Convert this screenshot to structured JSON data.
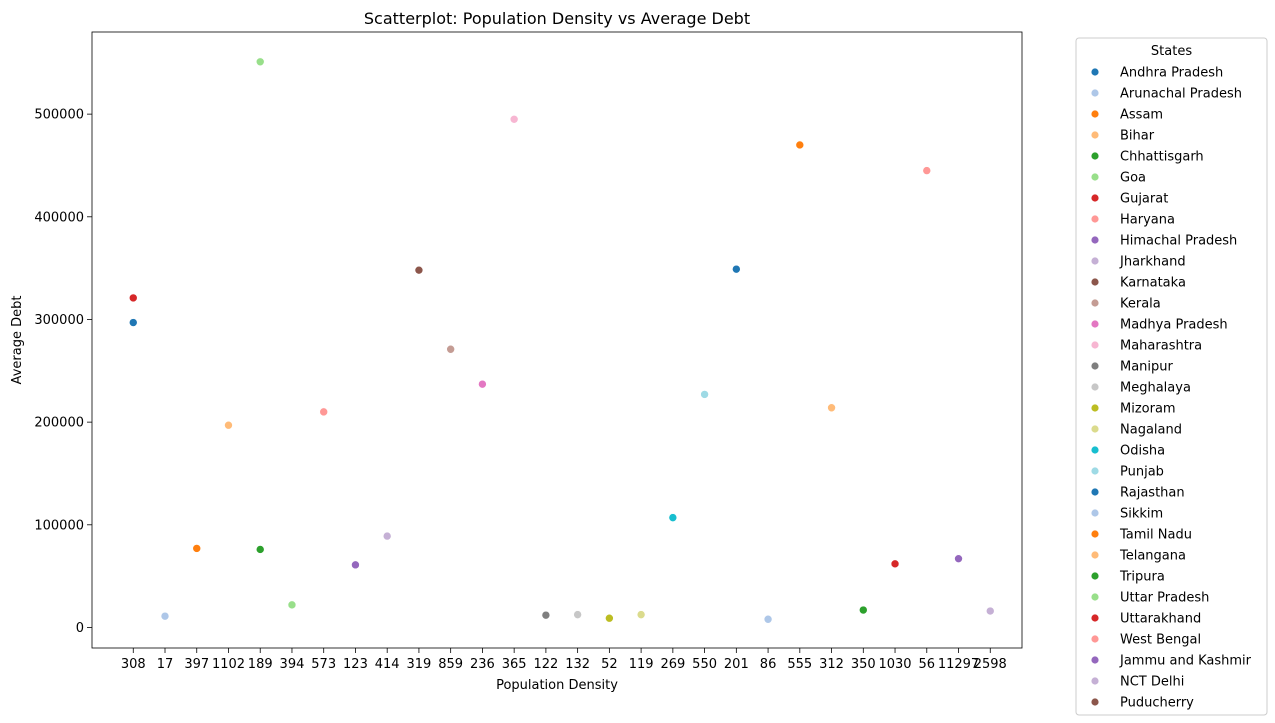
{
  "chart_data": {
    "type": "scatter",
    "title": "Scatterplot: Population Density vs Average Debt",
    "xlabel": "Population Density",
    "ylabel": "Average Debt",
    "x_scale": "categorical",
    "x_categories": [
      "308",
      "17",
      "397",
      "1102",
      "189",
      "394",
      "573",
      "123",
      "414",
      "319",
      "859",
      "236",
      "365",
      "122",
      "132",
      "52",
      "119",
      "269",
      "550",
      "201",
      "86",
      "555",
      "312",
      "350",
      "1030",
      "56",
      "11297",
      "2598"
    ],
    "ylim": [
      -20000,
      580000
    ],
    "yticks": [
      0,
      100000,
      200000,
      300000,
      400000,
      500000
    ],
    "ytick_labels": [
      "0",
      "100000",
      "200000",
      "300000",
      "400000",
      "500000"
    ],
    "grid": false,
    "legend": {
      "title": "States",
      "placement": "outside right"
    },
    "series": [
      {
        "name": "Andhra Pradesh",
        "color": "#1f77b4",
        "points": [
          {
            "x": "308",
            "y": 297000
          }
        ]
      },
      {
        "name": "Arunachal Pradesh",
        "color": "#aec7e8",
        "points": [
          {
            "x": "17",
            "y": 11000
          }
        ]
      },
      {
        "name": "Assam",
        "color": "#ff7f0e",
        "points": [
          {
            "x": "397",
            "y": 77000
          }
        ]
      },
      {
        "name": "Bihar",
        "color": "#ffbb78",
        "points": [
          {
            "x": "1102",
            "y": 197000
          }
        ]
      },
      {
        "name": "Chhattisgarh",
        "color": "#2ca02c",
        "points": [
          {
            "x": "189",
            "y": 76000
          }
        ]
      },
      {
        "name": "Goa",
        "color": "#98df8a",
        "points": [
          {
            "x": "394",
            "y": 22000
          }
        ]
      },
      {
        "name": "Gujarat",
        "color": "#d62728",
        "points": [
          {
            "x": "308",
            "y": 321000
          }
        ]
      },
      {
        "name": "Haryana",
        "color": "#ff9896",
        "points": [
          {
            "x": "573",
            "y": 210000
          }
        ]
      },
      {
        "name": "Himachal Pradesh",
        "color": "#9467bd",
        "points": [
          {
            "x": "123",
            "y": 61000
          }
        ]
      },
      {
        "name": "Jharkhand",
        "color": "#c5b0d5",
        "points": [
          {
            "x": "414",
            "y": 89000
          }
        ]
      },
      {
        "name": "Karnataka",
        "color": "#8c564b",
        "points": [
          {
            "x": "319",
            "y": 348000
          }
        ]
      },
      {
        "name": "Kerala",
        "color": "#c49c94",
        "points": [
          {
            "x": "859",
            "y": 271000
          }
        ]
      },
      {
        "name": "Madhya Pradesh",
        "color": "#e377c2",
        "points": [
          {
            "x": "236",
            "y": 237000
          }
        ]
      },
      {
        "name": "Maharashtra",
        "color": "#f7b6d2",
        "points": [
          {
            "x": "365",
            "y": 495000
          }
        ]
      },
      {
        "name": "Manipur",
        "color": "#7f7f7f",
        "points": [
          {
            "x": "122",
            "y": 12000
          }
        ]
      },
      {
        "name": "Meghalaya",
        "color": "#c7c7c7",
        "points": [
          {
            "x": "132",
            "y": 12500
          }
        ]
      },
      {
        "name": "Mizoram",
        "color": "#bcbd22",
        "points": [
          {
            "x": "52",
            "y": 9000
          }
        ]
      },
      {
        "name": "Nagaland",
        "color": "#dbdb8d",
        "points": [
          {
            "x": "119",
            "y": 12500
          }
        ]
      },
      {
        "name": "Odisha",
        "color": "#17becf",
        "points": [
          {
            "x": "269",
            "y": 107000
          }
        ]
      },
      {
        "name": "Punjab",
        "color": "#9edae5",
        "points": [
          {
            "x": "550",
            "y": 227000
          }
        ]
      },
      {
        "name": "Rajasthan",
        "color": "#1f77b4",
        "points": [
          {
            "x": "201",
            "y": 349000
          }
        ]
      },
      {
        "name": "Sikkim",
        "color": "#aec7e8",
        "points": [
          {
            "x": "86",
            "y": 8000
          }
        ]
      },
      {
        "name": "Tamil Nadu",
        "color": "#ff7f0e",
        "points": [
          {
            "x": "555",
            "y": 470000
          }
        ]
      },
      {
        "name": "Telangana",
        "color": "#ffbb78",
        "points": [
          {
            "x": "312",
            "y": 214000
          }
        ]
      },
      {
        "name": "Tripura",
        "color": "#2ca02c",
        "points": [
          {
            "x": "350",
            "y": 17000
          }
        ]
      },
      {
        "name": "Uttar Pradesh",
        "color": "#98df8a",
        "points": [
          {
            "x": "189",
            "y": 551000
          }
        ]
      },
      {
        "name": "Uttarakhand",
        "color": "#d62728",
        "points": [
          {
            "x": "1030",
            "y": 62000
          }
        ]
      },
      {
        "name": "West Bengal",
        "color": "#ff9896",
        "points": [
          {
            "x": "56",
            "y": 445000
          }
        ]
      },
      {
        "name": "Jammu and Kashmir",
        "color": "#9467bd",
        "points": [
          {
            "x": "11297",
            "y": 67000
          }
        ]
      },
      {
        "name": "NCT Delhi",
        "color": "#c5b0d5",
        "points": [
          {
            "x": "2598",
            "y": 16000
          }
        ]
      },
      {
        "name": "Puducherry",
        "color": "#8c564b",
        "points": []
      }
    ]
  }
}
